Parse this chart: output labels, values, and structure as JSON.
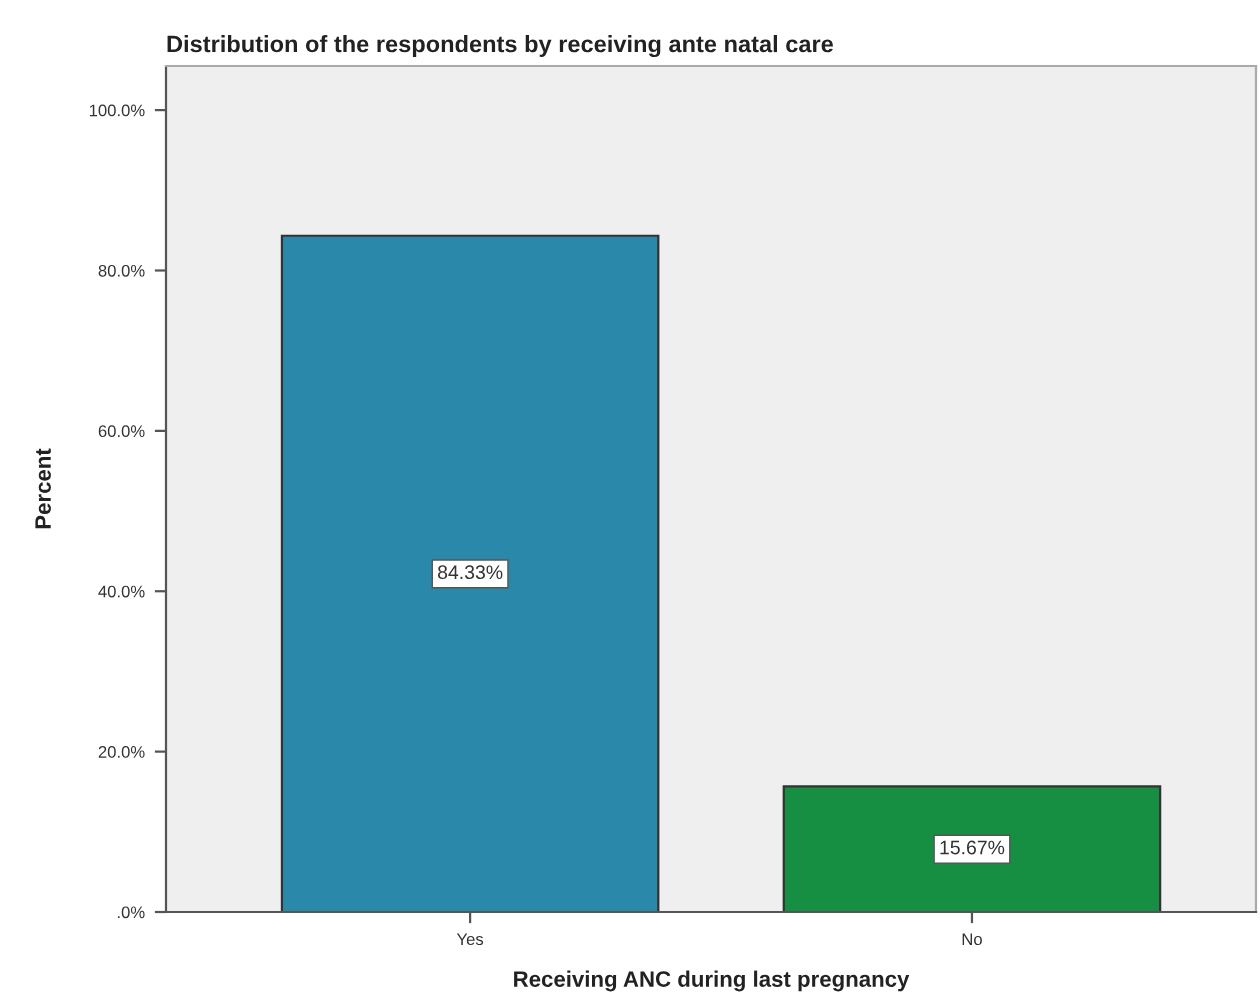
{
  "chart_data": {
    "type": "bar",
    "title": "Distribution of the respondents by receiving ante natal care",
    "xlabel": "Receiving ANC during last pregnancy",
    "ylabel": "Percent",
    "categories": [
      "Yes",
      "No"
    ],
    "values": [
      84.33,
      15.67
    ],
    "colors": [
      "#2a88ab",
      "#168f43"
    ],
    "value_labels": [
      "84.33%",
      "15.67%"
    ],
    "ylim": [
      0,
      105.5
    ],
    "yticks": [
      {
        "value": 0,
        "label": ".0%"
      },
      {
        "value": 20,
        "label": "20.0%"
      },
      {
        "value": 40,
        "label": "40.0%"
      },
      {
        "value": 60,
        "label": "60.0%"
      },
      {
        "value": 80,
        "label": "80.0%"
      },
      {
        "value": 100,
        "label": "100.0%"
      }
    ],
    "grid": false,
    "legend": false
  }
}
